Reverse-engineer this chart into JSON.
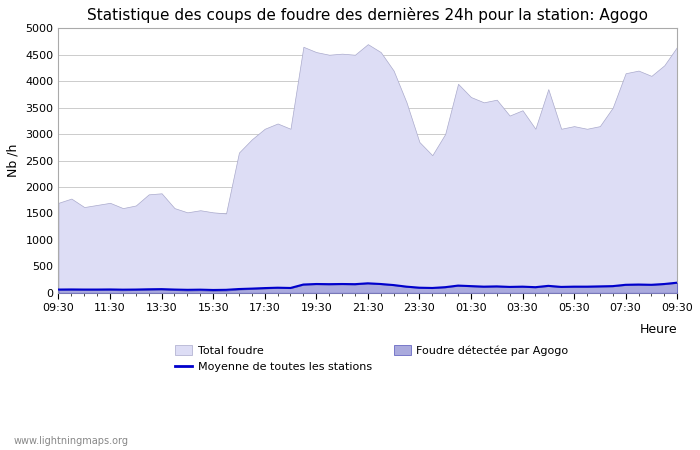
{
  "title": "Statistique des coups de foudre des dernières 24h pour la station: Agogo",
  "xlabel": "Heure",
  "ylabel": "Nb /h",
  "watermark": "www.lightningmaps.org",
  "x_labels": [
    "09:30",
    "11:30",
    "13:30",
    "15:30",
    "17:30",
    "19:30",
    "21:30",
    "23:30",
    "01:30",
    "03:30",
    "05:30",
    "07:30",
    "09:30"
  ],
  "ylim": [
    0,
    5000
  ],
  "yticks": [
    0,
    500,
    1000,
    1500,
    2000,
    2500,
    3000,
    3500,
    4000,
    4500,
    5000
  ],
  "total_foudre_color": "#ddddf5",
  "total_foudre_edge": "#aaaacc",
  "foudre_agogo_color": "#aaaadd",
  "foudre_agogo_edge": "#5555bb",
  "moyenne_color": "#0000cc",
  "background_color": "#ffffff",
  "grid_color": "#cccccc",
  "title_fontsize": 11,
  "axis_label_fontsize": 9,
  "tick_fontsize": 8,
  "total_foudre": [
    1700,
    1780,
    1620,
    1660,
    1700,
    1600,
    1650,
    1860,
    1880,
    1600,
    1520,
    1560,
    1520,
    1500,
    2650,
    2900,
    3100,
    3200,
    3100,
    4650,
    4550,
    4500,
    4520,
    4500,
    4700,
    4550,
    4200,
    3600,
    2850,
    2600,
    3000,
    3950,
    3700,
    3600,
    3650,
    3350,
    3450,
    3100,
    3850,
    3100,
    3150,
    3100,
    3150,
    3500,
    4150,
    4200,
    4100,
    4300,
    4650
  ],
  "foudre_agogo": [
    50,
    55,
    50,
    50,
    50,
    45,
    50,
    55,
    60,
    50,
    40,
    45,
    35,
    40,
    60,
    70,
    80,
    90,
    85,
    150,
    160,
    155,
    160,
    155,
    175,
    160,
    140,
    110,
    90,
    85,
    100,
    130,
    120,
    110,
    115,
    105,
    110,
    100,
    125,
    105,
    110,
    110,
    115,
    120,
    145,
    150,
    145,
    160,
    185
  ],
  "moyenne": [
    60,
    62,
    60,
    60,
    62,
    58,
    60,
    65,
    68,
    60,
    55,
    58,
    52,
    55,
    70,
    78,
    88,
    95,
    90,
    155,
    165,
    162,
    165,
    162,
    178,
    165,
    145,
    115,
    95,
    90,
    105,
    135,
    125,
    115,
    120,
    110,
    115,
    105,
    130,
    110,
    115,
    115,
    120,
    125,
    150,
    155,
    150,
    165,
    190
  ]
}
